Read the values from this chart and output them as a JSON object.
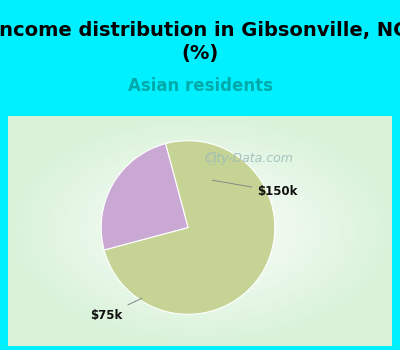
{
  "title": "Income distribution in Gibsonville, NC\n(%)",
  "subtitle": "Asian residents",
  "title_fontsize": 14,
  "subtitle_fontsize": 12,
  "title_color": "#000000",
  "subtitle_color": "#00aaaa",
  "bg_color_cyan": "#00f0ff",
  "slice_colors": [
    "#c5d494",
    "#c9a8d4"
  ],
  "slices": [
    75.0,
    25.0
  ],
  "slice_labels": [
    "$75k",
    "$150k"
  ],
  "start_angle": 105,
  "watermark": "City-Data.com",
  "watermark_color": "#99bbbb",
  "watermark_fontsize": 9,
  "label_fontsize": 8.5,
  "label_color": "#111111"
}
